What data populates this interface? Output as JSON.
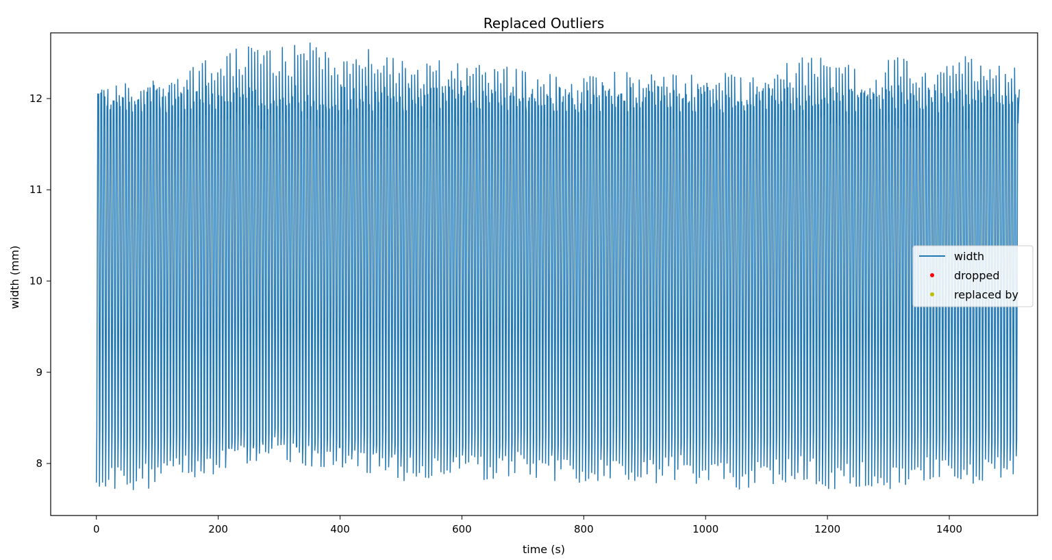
{
  "chart_data": {
    "type": "line",
    "title": "Replaced Outliers",
    "xlabel": "time (s)",
    "ylabel": "width (mm)",
    "xlim": [
      -75,
      1545
    ],
    "ylim": [
      7.43,
      12.72
    ],
    "xticks": [
      0,
      200,
      400,
      600,
      800,
      1000,
      1200,
      1400
    ],
    "xtick_labels": [
      "0",
      "200",
      "400",
      "600",
      "800",
      "1000",
      "1200",
      "1400"
    ],
    "yticks": [
      8,
      9,
      10,
      11,
      12
    ],
    "ytick_labels": [
      "8",
      "9",
      "10",
      "11",
      "12"
    ],
    "grid": false,
    "legend_position": "center-right",
    "series": [
      {
        "name": "width",
        "kind": "line",
        "color": "#1f77b4",
        "description_points": {
          "x_range": [
            0,
            1515
          ],
          "approx_cycles": 300,
          "cycle_period_s": 5.05,
          "peak_values": [
            12.0,
            12.05,
            12.1,
            12.2,
            12.3,
            12.45,
            12.4,
            12.45,
            12.3,
            12.4,
            12.3,
            12.25,
            12.2,
            12.2,
            12.15,
            12.1,
            12.1,
            12.15,
            12.1,
            12.1,
            12.15,
            12.1,
            12.2,
            12.3,
            12.3,
            12.15,
            12.3,
            12.15,
            12.3,
            12.25,
            12.15
          ],
          "trough_values": [
            7.85,
            7.8,
            7.9,
            7.95,
            8.0,
            8.1,
            8.15,
            8.1,
            8.05,
            8.0,
            7.95,
            7.95,
            7.95,
            7.95,
            8.0,
            7.95,
            7.9,
            7.95,
            7.9,
            7.95,
            7.9,
            7.85,
            7.9,
            7.95,
            7.85,
            7.9,
            7.85,
            7.95,
            7.9,
            7.95,
            8.05
          ]
        }
      },
      {
        "name": "dropped",
        "kind": "points",
        "color": "#ff0000",
        "x": [],
        "y": []
      },
      {
        "name": "replaced by",
        "kind": "points",
        "color": "#bfbf00",
        "x": [],
        "y": []
      }
    ]
  }
}
